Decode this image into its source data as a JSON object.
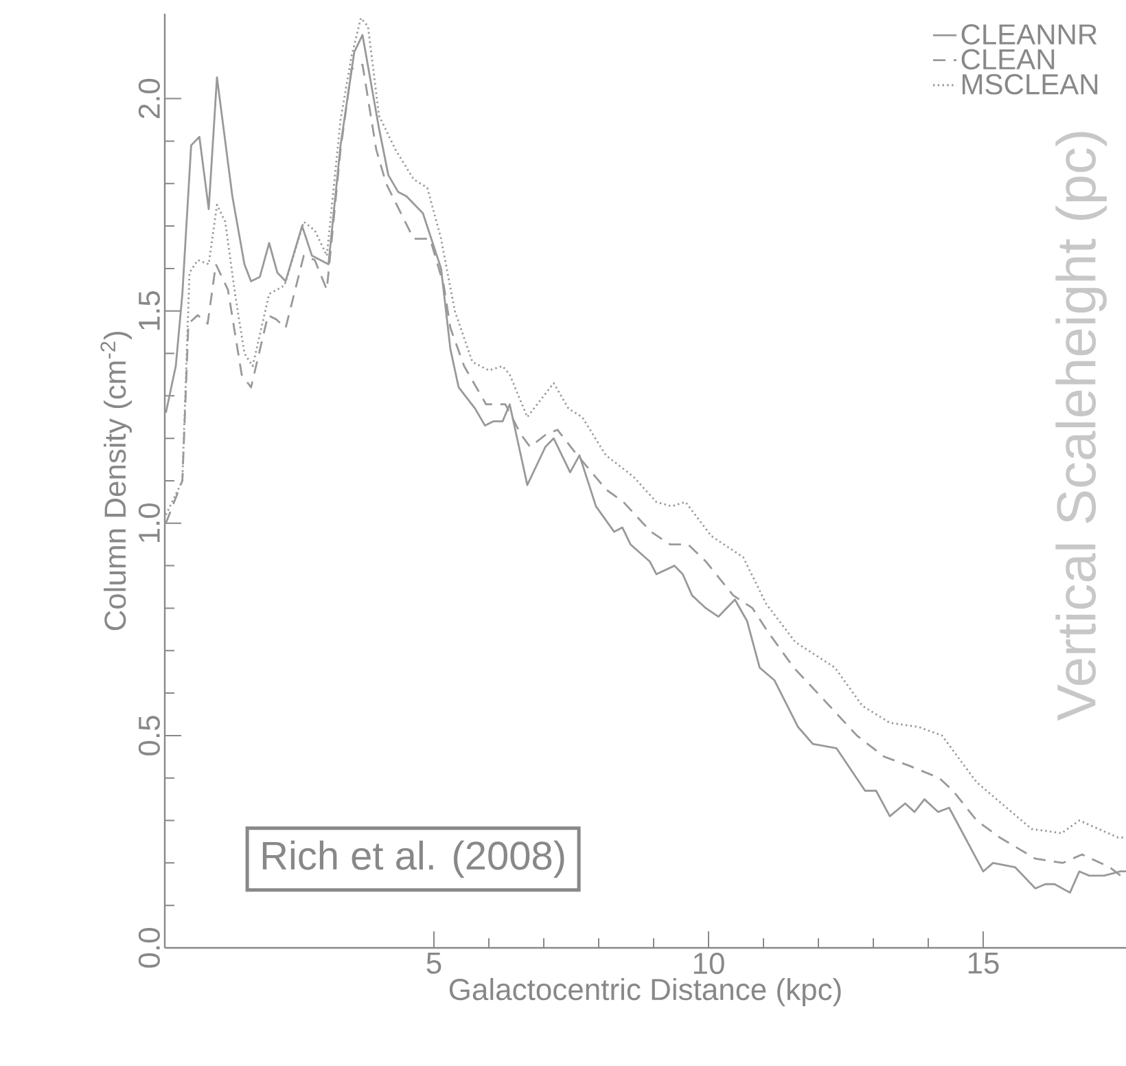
{
  "chart_data": {
    "type": "line",
    "xlabel": "Galactocentric Distance (kpc)",
    "ylabel": "Column Density (cm$^{-2}$)",
    "y2label": "Vertical Scaleheight (pc)",
    "annotations": [
      "Rich et al. (2008)"
    ],
    "xlim": [
      0.1,
      17.6
    ],
    "ylim": [
      0,
      2.2
    ],
    "xticks": [
      5,
      10,
      15
    ],
    "yticks": [
      {
        "value": 0,
        "label": "0.0"
      },
      {
        "value": 0.5,
        "label": "0.5"
      },
      {
        "value": 1,
        "label": "1.0"
      },
      {
        "value": 1.5,
        "label": "1.5"
      },
      {
        "value": 2,
        "label": "2.0"
      }
    ],
    "grid": false,
    "legend": "top right",
    "marker": "none",
    "series": [
      {
        "name": "CLEANNR",
        "color": "#999999",
        "line_style": "solid",
        "x": [
          0.12,
          0.3,
          0.42,
          0.58,
          0.73,
          0.9,
          1.05,
          1.33,
          1.55,
          1.67,
          1.83,
          2.0,
          2.15,
          2.3,
          2.6,
          2.78,
          3.08,
          3.3,
          3.55,
          3.7,
          4.0,
          4.17,
          4.35,
          4.5,
          4.8,
          5.13,
          5.3,
          5.45,
          5.75,
          5.93,
          6.08,
          6.25,
          6.38,
          6.7,
          7.03,
          7.18,
          7.48,
          7.65,
          7.95,
          8.28,
          8.43,
          8.58,
          8.93,
          9.05,
          9.38,
          9.53,
          9.7,
          9.95,
          10.18,
          10.48,
          10.7,
          10.93,
          11.2,
          11.63,
          11.9,
          12.33,
          12.85,
          13.05,
          13.3,
          13.58,
          13.75,
          13.93,
          14.18,
          14.38,
          15.0,
          15.18,
          15.58,
          15.95,
          16.13,
          16.3,
          16.58,
          16.75,
          16.93,
          17.2,
          17.5,
          17.6
        ],
        "values": [
          1.26,
          1.37,
          1.54,
          1.89,
          1.91,
          1.74,
          2.05,
          1.77,
          1.61,
          1.57,
          1.58,
          1.66,
          1.59,
          1.57,
          1.7,
          1.63,
          1.61,
          1.89,
          2.11,
          2.15,
          1.93,
          1.82,
          1.78,
          1.77,
          1.73,
          1.6,
          1.41,
          1.32,
          1.27,
          1.23,
          1.24,
          1.24,
          1.28,
          1.09,
          1.18,
          1.2,
          1.12,
          1.16,
          1.04,
          0.98,
          0.99,
          0.95,
          0.91,
          0.88,
          0.9,
          0.88,
          0.83,
          0.8,
          0.78,
          0.82,
          0.77,
          0.66,
          0.63,
          0.52,
          0.48,
          0.47,
          0.37,
          0.37,
          0.31,
          0.34,
          0.32,
          0.35,
          0.32,
          0.33,
          0.18,
          0.2,
          0.19,
          0.14,
          0.15,
          0.15,
          0.13,
          0.18,
          0.17,
          0.17,
          0.18,
          0.18
        ]
      },
      {
        "name": "CLEAN",
        "color": "#999999",
        "line_style": "dashed",
        "x": [
          0.12,
          0.42,
          0.53,
          0.7,
          0.88,
          1.03,
          1.25,
          1.5,
          1.67,
          1.98,
          2.13,
          2.3,
          2.63,
          2.83,
          3.05,
          3.3,
          3.5,
          3.7,
          3.95,
          4.13,
          4.63,
          4.93,
          5.18,
          5.3,
          5.55,
          5.95,
          6.3,
          6.58,
          6.75,
          7.05,
          7.25,
          7.55,
          8.13,
          8.45,
          8.95,
          9.3,
          9.63,
          9.95,
          10.45,
          10.8,
          11.05,
          11.55,
          12.13,
          12.7,
          13.2,
          13.63,
          14.2,
          14.45,
          14.88,
          15.3,
          15.95,
          16.45,
          16.8,
          17.3,
          17.6
        ],
        "values": [
          1.0,
          1.1,
          1.47,
          1.49,
          1.47,
          1.61,
          1.55,
          1.35,
          1.32,
          1.49,
          1.48,
          1.46,
          1.63,
          1.62,
          1.55,
          1.88,
          2.07,
          2.08,
          1.88,
          1.8,
          1.67,
          1.67,
          1.56,
          1.46,
          1.37,
          1.28,
          1.28,
          1.21,
          1.18,
          1.21,
          1.22,
          1.17,
          1.08,
          1.05,
          0.98,
          0.95,
          0.95,
          0.91,
          0.83,
          0.8,
          0.75,
          0.66,
          0.58,
          0.5,
          0.45,
          0.43,
          0.4,
          0.37,
          0.3,
          0.26,
          0.21,
          0.2,
          0.22,
          0.19,
          0.16
        ]
      },
      {
        "name": "MSCLEAN",
        "color": "#999999",
        "line_style": "dotted",
        "x": [
          0.12,
          0.42,
          0.55,
          0.7,
          0.9,
          1.05,
          1.2,
          1.38,
          1.55,
          1.7,
          2.0,
          2.28,
          2.63,
          2.83,
          3.05,
          3.3,
          3.5,
          3.67,
          3.8,
          4.0,
          4.3,
          4.63,
          4.88,
          5.13,
          5.38,
          5.7,
          6.0,
          6.25,
          6.38,
          6.7,
          7.18,
          7.45,
          7.7,
          8.13,
          8.63,
          9.05,
          9.33,
          9.58,
          10.05,
          10.63,
          11.05,
          11.58,
          12.3,
          12.8,
          13.3,
          13.83,
          14.25,
          14.88,
          15.88,
          16.43,
          16.75,
          17.45,
          17.6
        ],
        "values": [
          1.02,
          1.1,
          1.59,
          1.62,
          1.61,
          1.75,
          1.71,
          1.54,
          1.4,
          1.37,
          1.54,
          1.56,
          1.71,
          1.69,
          1.63,
          1.95,
          2.1,
          2.19,
          2.17,
          1.96,
          1.88,
          1.81,
          1.79,
          1.67,
          1.5,
          1.38,
          1.36,
          1.37,
          1.35,
          1.25,
          1.33,
          1.27,
          1.25,
          1.16,
          1.11,
          1.05,
          1.04,
          1.05,
          0.97,
          0.92,
          0.81,
          0.72,
          0.66,
          0.57,
          0.53,
          0.52,
          0.5,
          0.39,
          0.28,
          0.27,
          0.3,
          0.26,
          0.26
        ]
      }
    ]
  }
}
